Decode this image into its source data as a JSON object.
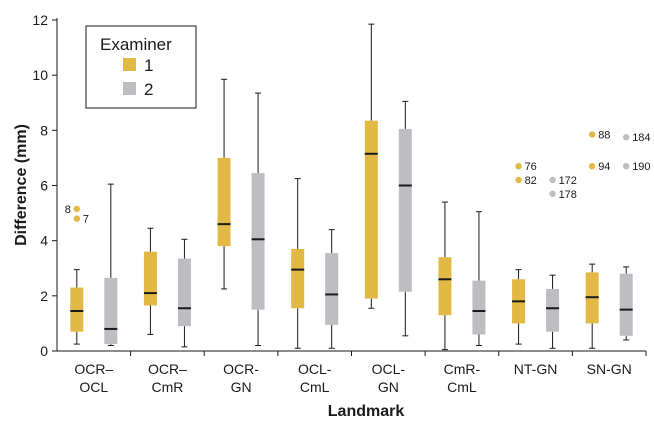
{
  "chart_data": {
    "type": "box",
    "xlabel": "Landmark",
    "ylabel": "Difference (mm)",
    "ylim": [
      0,
      12
    ],
    "yticks": [
      0,
      2,
      4,
      6,
      8,
      10,
      12
    ],
    "categories": [
      [
        "OCR–",
        "OCL"
      ],
      [
        "OCR–",
        "CmR"
      ],
      [
        "OCR-",
        "GN"
      ],
      [
        "OCL-",
        "CmL"
      ],
      [
        "OCL-",
        "GN"
      ],
      [
        "CmR-",
        "CmL"
      ],
      [
        "NT-GN"
      ],
      [
        "SN-GN"
      ]
    ],
    "legend": {
      "title": "Examiner",
      "placement": "top-left",
      "entries": [
        "1",
        "2"
      ]
    },
    "series": [
      {
        "name": "1",
        "color": "#e3b945",
        "boxes": [
          {
            "min": 0.25,
            "q1": 0.7,
            "median": 1.45,
            "q3": 2.3,
            "max": 2.95
          },
          {
            "min": 0.6,
            "q1": 1.65,
            "median": 2.1,
            "q3": 3.6,
            "max": 4.45
          },
          {
            "min": 2.25,
            "q1": 3.8,
            "median": 4.6,
            "q3": 7.0,
            "max": 9.85
          },
          {
            "min": 0.1,
            "q1": 1.55,
            "median": 2.95,
            "q3": 3.7,
            "max": 6.25
          },
          {
            "min": 1.55,
            "q1": 1.9,
            "median": 7.15,
            "q3": 8.35,
            "max": 11.85
          },
          {
            "min": 0.05,
            "q1": 1.3,
            "median": 2.6,
            "q3": 3.4,
            "max": 5.4
          },
          {
            "min": 0.25,
            "q1": 1.0,
            "median": 1.8,
            "q3": 2.6,
            "max": 2.95
          },
          {
            "min": 0.1,
            "q1": 1.0,
            "median": 1.95,
            "q3": 2.85,
            "max": 3.15
          }
        ],
        "outliers": [
          [
            {
              "value": 5.15,
              "label": "8"
            },
            {
              "value": 4.8,
              "label": "7"
            }
          ],
          [],
          [],
          [],
          [],
          [],
          [
            {
              "value": 6.7,
              "label": "76"
            },
            {
              "value": 6.2,
              "label": "82"
            }
          ],
          [
            {
              "value": 7.85,
              "label": "88"
            },
            {
              "value": 6.7,
              "label": "94"
            }
          ]
        ]
      },
      {
        "name": "2",
        "color": "#bdbdc2",
        "boxes": [
          {
            "min": 0.2,
            "q1": 0.25,
            "median": 0.8,
            "q3": 2.65,
            "max": 6.05
          },
          {
            "min": 0.15,
            "q1": 0.9,
            "median": 1.55,
            "q3": 3.35,
            "max": 4.05
          },
          {
            "min": 0.2,
            "q1": 1.5,
            "median": 4.05,
            "q3": 6.45,
            "max": 9.35
          },
          {
            "min": 0.1,
            "q1": 0.95,
            "median": 2.05,
            "q3": 3.55,
            "max": 4.4
          },
          {
            "min": 0.55,
            "q1": 2.15,
            "median": 6.0,
            "q3": 8.05,
            "max": 9.05
          },
          {
            "min": 0.2,
            "q1": 0.6,
            "median": 1.45,
            "q3": 2.55,
            "max": 5.05
          },
          {
            "min": 0.1,
            "q1": 0.7,
            "median": 1.55,
            "q3": 2.25,
            "max": 2.75
          },
          {
            "min": 0.4,
            "q1": 0.55,
            "median": 1.5,
            "q3": 2.8,
            "max": 3.05
          }
        ],
        "outliers": [
          [],
          [],
          [],
          [],
          [],
          [],
          [
            {
              "value": 6.2,
              "label": "172"
            },
            {
              "value": 5.7,
              "label": "178"
            }
          ],
          [
            {
              "value": 7.75,
              "label": "184"
            },
            {
              "value": 6.7,
              "label": "190"
            }
          ]
        ]
      }
    ]
  }
}
